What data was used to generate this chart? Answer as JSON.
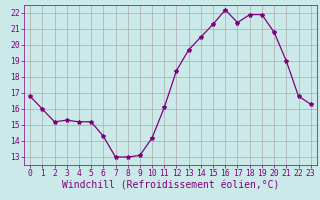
{
  "x": [
    0,
    1,
    2,
    3,
    4,
    5,
    6,
    7,
    8,
    9,
    10,
    11,
    12,
    13,
    14,
    15,
    16,
    17,
    18,
    19,
    20,
    21,
    22,
    23
  ],
  "y": [
    16.8,
    16.0,
    15.2,
    15.3,
    15.2,
    15.2,
    14.3,
    13.0,
    13.0,
    13.1,
    14.2,
    16.1,
    18.4,
    19.7,
    20.5,
    21.3,
    22.2,
    21.4,
    21.9,
    21.9,
    20.8,
    19.0,
    16.8,
    16.3
  ],
  "xlabel": "Windchill (Refroidissement éolien,°C)",
  "xlim": [
    -0.5,
    23.5
  ],
  "ylim": [
    12.5,
    22.5
  ],
  "yticks": [
    13,
    14,
    15,
    16,
    17,
    18,
    19,
    20,
    21,
    22
  ],
  "xticks": [
    0,
    1,
    2,
    3,
    4,
    5,
    6,
    7,
    8,
    9,
    10,
    11,
    12,
    13,
    14,
    15,
    16,
    17,
    18,
    19,
    20,
    21,
    22,
    23
  ],
  "line_color": "#800080",
  "marker": "*",
  "bg_color": "#cce9e9",
  "grid_color": "#aaaaaa",
  "font_color": "#800080",
  "tick_fontsize": 5.8,
  "label_fontsize": 7.0
}
